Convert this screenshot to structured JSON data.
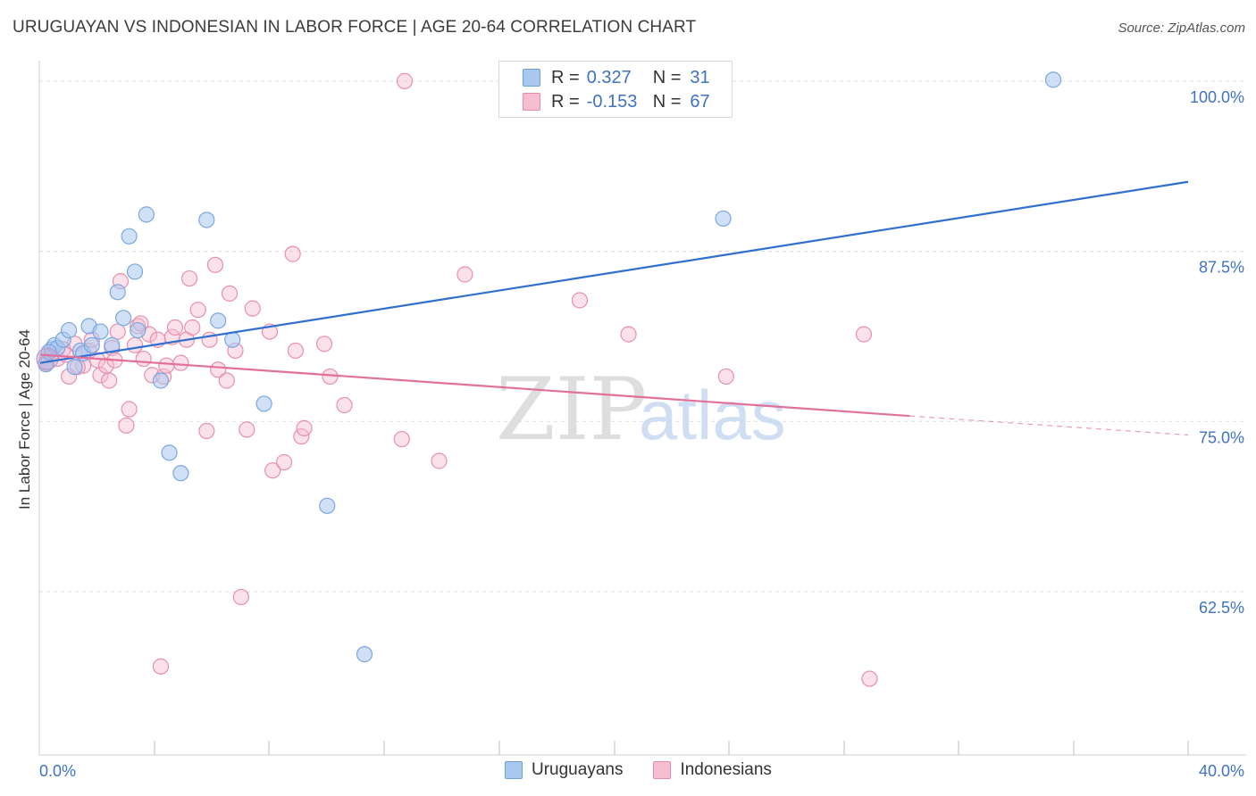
{
  "title": "URUGUAYAN VS INDONESIAN IN LABOR FORCE | AGE 20-64 CORRELATION CHART",
  "source": "Source: ZipAtlas.com",
  "watermark": {
    "zip": "ZIP",
    "atlas": "atlas"
  },
  "legend": {
    "rows": [
      {
        "r_label": "R =",
        "r_value": "0.327",
        "n_label": "N =",
        "n_value": "31",
        "color": "#a9c8f0",
        "border": "#6c9fd8"
      },
      {
        "r_label": "R =",
        "r_value": "-0.153",
        "n_label": "N =",
        "n_value": "67",
        "color": "#f7bdd0",
        "border": "#e58aaa"
      }
    ]
  },
  "bottom_legend": {
    "items": [
      {
        "label": "Uruguayans",
        "color": "#a9c8f0",
        "border": "#6c9fd8"
      },
      {
        "label": "Indonesians",
        "color": "#f7bdd0",
        "border": "#e58aaa"
      }
    ]
  },
  "chart_data": {
    "type": "scatter",
    "title": "URUGUAYAN VS INDONESIAN IN LABOR FORCE | AGE 20-64 CORRELATION CHART",
    "xlabel": "",
    "ylabel": "In Labor Force | Age 20-64",
    "xlim": [
      0,
      40
    ],
    "ylim": [
      50.5,
      101.5
    ],
    "x_tick_labels": [
      "0.0%",
      "40.0%"
    ],
    "y_ticks": [
      62.5,
      75.0,
      87.5,
      100.0
    ],
    "y_tick_labels": [
      "62.5%",
      "75.0%",
      "87.5%",
      "100.0%"
    ],
    "grid": true,
    "series": [
      {
        "name": "Uruguayans",
        "color": "#7aa7e0",
        "fill": "rgba(169,200,240,0.55)",
        "line_color": "#2f6fd0",
        "trend": {
          "x": [
            0,
            40
          ],
          "y": [
            79.3,
            92.6
          ]
        },
        "points": [
          [
            0.2,
            79.2
          ],
          [
            0.4,
            80.3
          ],
          [
            0.5,
            80.6
          ],
          [
            0.6,
            80.4
          ],
          [
            0.8,
            81.0
          ],
          [
            1.0,
            81.7
          ],
          [
            1.2,
            79.0
          ],
          [
            1.4,
            80.2
          ],
          [
            1.5,
            80.0
          ],
          [
            1.7,
            82.0
          ],
          [
            1.8,
            80.6
          ],
          [
            2.1,
            81.6
          ],
          [
            2.5,
            80.6
          ],
          [
            2.7,
            84.5
          ],
          [
            2.9,
            82.6
          ],
          [
            3.1,
            88.6
          ],
          [
            3.3,
            86.0
          ],
          [
            3.4,
            81.7
          ],
          [
            3.7,
            90.2
          ],
          [
            4.2,
            78.0
          ],
          [
            4.5,
            72.7
          ],
          [
            4.9,
            71.2
          ],
          [
            5.8,
            89.8
          ],
          [
            6.2,
            82.4
          ],
          [
            6.7,
            81.0
          ],
          [
            7.8,
            76.3
          ],
          [
            10.0,
            68.8
          ],
          [
            11.3,
            57.9
          ],
          [
            23.8,
            89.9
          ],
          [
            35.3,
            100.1
          ],
          [
            0.3,
            80.1
          ]
        ]
      },
      {
        "name": "Indonesians",
        "color": "#e88fae",
        "fill": "rgba(247,189,208,0.45)",
        "line_color": "#e2719a",
        "trend": {
          "x": [
            0,
            30.3
          ],
          "y": [
            79.9,
            75.4
          ]
        },
        "trend_dashed": {
          "x": [
            30.3,
            40
          ],
          "y": [
            75.4,
            74.0
          ]
        },
        "points": [
          [
            0.2,
            79.3
          ],
          [
            0.4,
            80.0
          ],
          [
            0.6,
            79.6
          ],
          [
            0.8,
            80.3
          ],
          [
            1.0,
            78.3
          ],
          [
            1.2,
            80.7
          ],
          [
            1.5,
            79.1
          ],
          [
            1.7,
            80.2
          ],
          [
            1.8,
            81.0
          ],
          [
            2.0,
            79.5
          ],
          [
            2.1,
            78.4
          ],
          [
            2.3,
            79.1
          ],
          [
            2.4,
            78.0
          ],
          [
            2.5,
            80.4
          ],
          [
            2.6,
            79.5
          ],
          [
            2.7,
            81.6
          ],
          [
            2.8,
            85.3
          ],
          [
            3.0,
            74.7
          ],
          [
            3.1,
            75.9
          ],
          [
            3.3,
            80.6
          ],
          [
            3.4,
            82.0
          ],
          [
            3.6,
            79.6
          ],
          [
            3.8,
            81.4
          ],
          [
            3.9,
            78.4
          ],
          [
            4.1,
            81.0
          ],
          [
            4.2,
            57.0
          ],
          [
            4.3,
            78.3
          ],
          [
            4.4,
            79.1
          ],
          [
            4.6,
            81.2
          ],
          [
            4.7,
            81.9
          ],
          [
            4.9,
            79.3
          ],
          [
            5.1,
            81.0
          ],
          [
            5.2,
            85.5
          ],
          [
            5.3,
            81.9
          ],
          [
            5.5,
            83.2
          ],
          [
            5.8,
            74.3
          ],
          [
            5.9,
            81.0
          ],
          [
            6.1,
            86.5
          ],
          [
            6.2,
            78.8
          ],
          [
            6.5,
            78.0
          ],
          [
            6.6,
            84.4
          ],
          [
            6.8,
            80.2
          ],
          [
            7.0,
            62.1
          ],
          [
            7.2,
            74.4
          ],
          [
            7.4,
            83.3
          ],
          [
            8.0,
            81.6
          ],
          [
            8.1,
            71.4
          ],
          [
            8.5,
            72.0
          ],
          [
            8.8,
            87.3
          ],
          [
            8.9,
            80.2
          ],
          [
            9.1,
            73.9
          ],
          [
            9.2,
            74.5
          ],
          [
            9.9,
            80.7
          ],
          [
            10.1,
            78.3
          ],
          [
            10.6,
            76.2
          ],
          [
            12.6,
            73.7
          ],
          [
            12.7,
            100.0
          ],
          [
            13.9,
            72.1
          ],
          [
            14.8,
            85.8
          ],
          [
            18.8,
            83.9
          ],
          [
            20.5,
            81.4
          ],
          [
            23.9,
            78.3
          ],
          [
            28.7,
            81.4
          ],
          [
            28.9,
            56.1
          ],
          [
            0.9,
            79.9
          ],
          [
            1.3,
            79.0
          ],
          [
            3.5,
            82.2
          ]
        ]
      }
    ]
  }
}
